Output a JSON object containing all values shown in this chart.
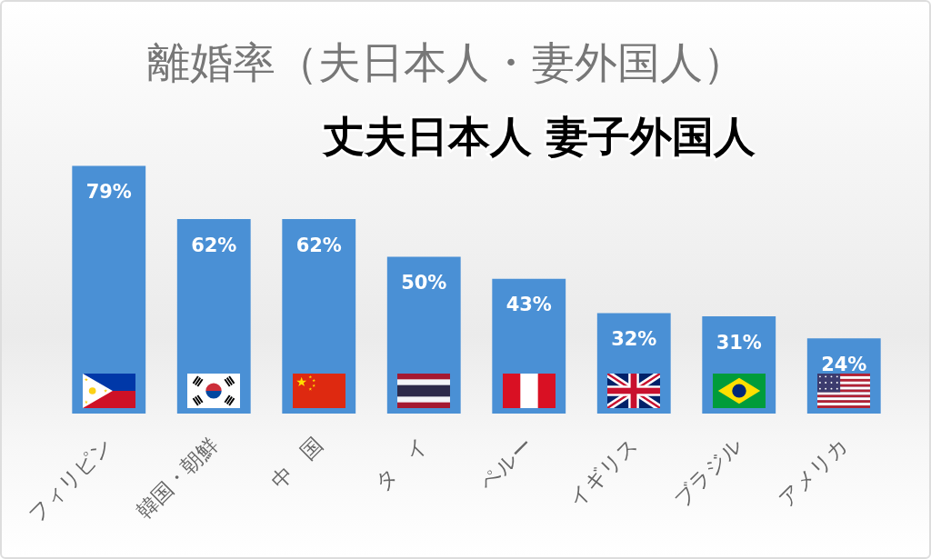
{
  "chart_data": {
    "type": "bar",
    "title": "離婚率（夫日本人・妻外国人）",
    "subtitle": "丈夫日本人 妻子外国人",
    "categories": [
      "フィリピン",
      "韓国・朝鮮",
      "中　国",
      "タ　イ",
      "ペルー",
      "イギリス",
      "ブラジル",
      "アメリカ"
    ],
    "values": [
      79,
      62,
      62,
      50,
      43,
      32,
      31,
      24
    ],
    "value_labels": [
      "79%",
      "62%",
      "62%",
      "50%",
      "43%",
      "32%",
      "31%",
      "24%"
    ],
    "color": "#4a90d5",
    "tick_labels": "x"
  }
}
